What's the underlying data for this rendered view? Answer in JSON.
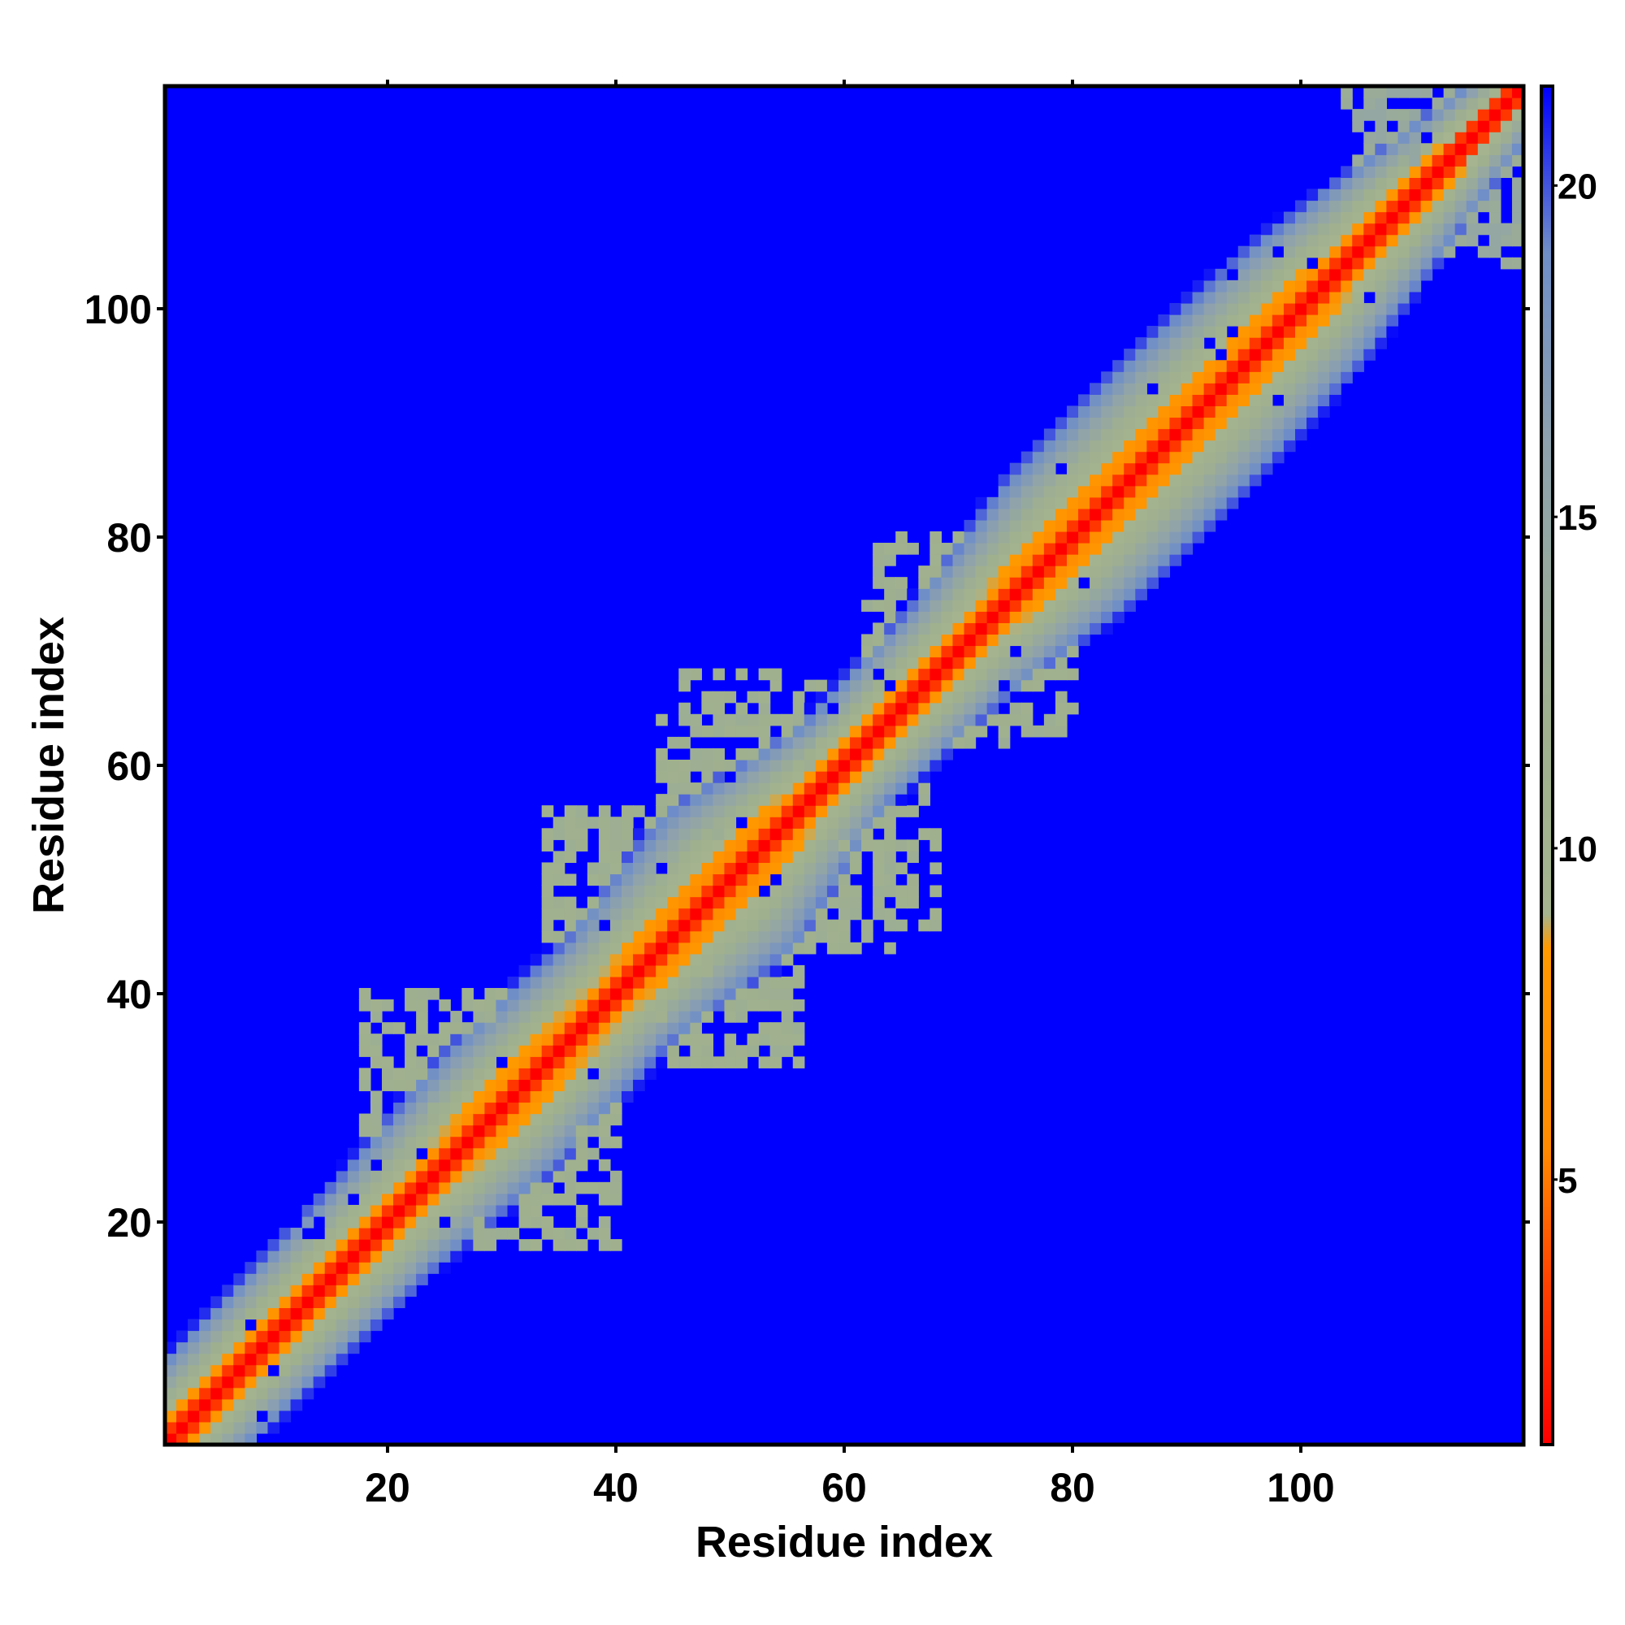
{
  "chart_data": {
    "type": "heatmap",
    "title": "",
    "xlabel": "Residue index",
    "ylabel": "Residue index",
    "n_residues": 119,
    "xlim": [
      0.5,
      119.5
    ],
    "ylim": [
      0.5,
      119.5
    ],
    "x_ticks": [
      20,
      40,
      60,
      80,
      100
    ],
    "y_ticks": [
      20,
      40,
      60,
      80,
      100
    ],
    "x_tick_labels": [
      "20",
      "40",
      "60",
      "80",
      "100"
    ],
    "y_tick_labels": [
      "20",
      "40",
      "60",
      "80",
      "100"
    ],
    "colorbar": {
      "range": [
        1,
        21.5
      ],
      "ticks": [
        5,
        10,
        15,
        20
      ],
      "tick_labels": [
        "5",
        "10",
        "15",
        "20"
      ],
      "colors": [
        "#ff0000",
        "#ff4400",
        "#ff8c00",
        "#ff9a00",
        "#a6b48f",
        "#9fb08f",
        "#8fa2ac",
        "#6f8ec8",
        "#0000ff"
      ],
      "color_stops": [
        1,
        3.5,
        5.5,
        8.5,
        9,
        12,
        16,
        19,
        21.5
      ]
    },
    "background_value": 21.5,
    "band_profile": {
      "description_values": "distance value vs |i-j| separation",
      "separations": [
        0,
        1,
        2,
        3,
        4,
        5,
        6,
        7,
        8,
        9,
        10,
        11,
        12
      ],
      "values": [
        1,
        3,
        6,
        7.5,
        10,
        11,
        12.5,
        14,
        15.5,
        17,
        18.5,
        20,
        21.5
      ]
    },
    "band_half_width": [
      {
        "x": 1,
        "w": 8
      },
      {
        "x": 20,
        "w": 9
      },
      {
        "x": 30,
        "w": 11
      },
      {
        "x": 40,
        "w": 10
      },
      {
        "x": 50,
        "w": 13
      },
      {
        "x": 60,
        "w": 8
      },
      {
        "x": 70,
        "w": 9
      },
      {
        "x": 80,
        "w": 12
      },
      {
        "x": 90,
        "w": 12
      },
      {
        "x": 100,
        "w": 11
      },
      {
        "x": 110,
        "w": 8
      },
      {
        "x": 119,
        "w": 5
      }
    ],
    "contact_patches": [
      {
        "x0": 22,
        "x1": 38,
        "y0": 24,
        "y1": 40,
        "value": 11
      },
      {
        "x0": 34,
        "x1": 48,
        "y0": 38,
        "y1": 56,
        "value": 11
      },
      {
        "x0": 44,
        "x1": 62,
        "y0": 54,
        "y1": 64,
        "value": 11
      },
      {
        "x0": 28,
        "x1": 40,
        "y0": 18,
        "y1": 30,
        "value": 11
      },
      {
        "x0": 45,
        "x1": 56,
        "y0": 34,
        "y1": 44,
        "value": 11
      },
      {
        "x0": 56,
        "x1": 68,
        "y0": 46,
        "y1": 58,
        "value": 11
      },
      {
        "x0": 70,
        "x1": 80,
        "y0": 62,
        "y1": 76,
        "value": 11
      },
      {
        "x0": 104,
        "x1": 119,
        "y0": 106,
        "y1": 119,
        "value": 13
      }
    ],
    "grid": false,
    "legend": "colorbar-right"
  }
}
